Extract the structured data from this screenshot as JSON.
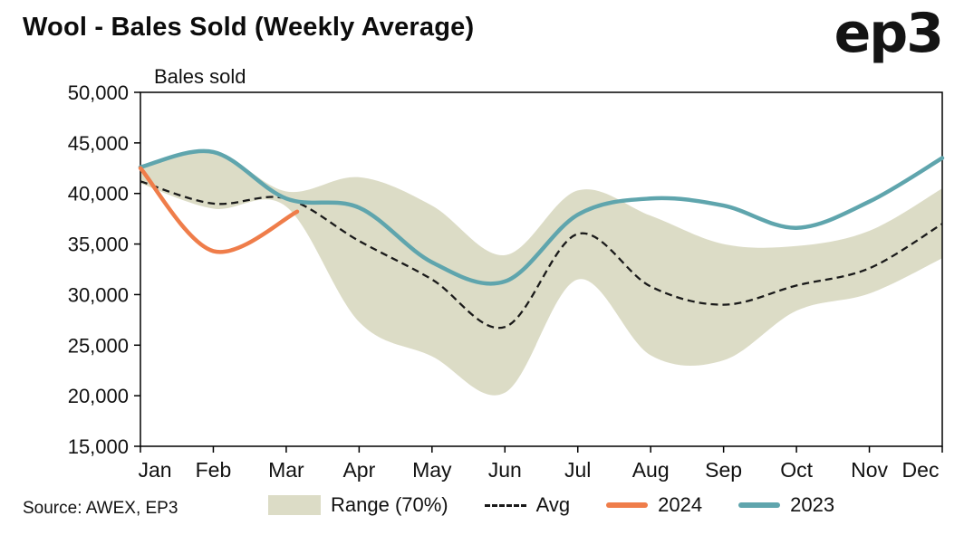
{
  "header": {
    "logo": "ep3"
  },
  "footer": {
    "source": "Source: AWEX, EP3"
  },
  "chart_data": {
    "type": "line",
    "title": "Wool - Bales Sold (Weekly Average)",
    "ylabel": "Bales sold",
    "xlabel": "",
    "categories": [
      "Jan",
      "Feb",
      "Mar",
      "Apr",
      "May",
      "Jun",
      "Jul",
      "Aug",
      "Sep",
      "Oct",
      "Nov",
      "Dec"
    ],
    "ylim": [
      15000,
      50000
    ],
    "yticks": [
      15000,
      20000,
      25000,
      30000,
      35000,
      40000,
      45000,
      50000
    ],
    "grid": false,
    "legend_position": "bottom",
    "series": [
      {
        "name": "Range (70%)",
        "type": "band",
        "color": "#dcdcc6",
        "upper": [
          42600,
          44200,
          40200,
          41600,
          38800,
          33900,
          40300,
          37800,
          35000,
          34800,
          36300,
          40500
        ],
        "lower": [
          41000,
          38500,
          38700,
          27300,
          23900,
          20300,
          31500,
          24000,
          23500,
          28400,
          30100,
          33600
        ]
      },
      {
        "name": "Avg",
        "type": "dashed-line",
        "color": "#1a1a1a",
        "values": [
          41200,
          39000,
          39500,
          35300,
          31500,
          26800,
          36000,
          30800,
          29000,
          30900,
          32600,
          37000
        ]
      },
      {
        "name": "2024",
        "type": "line",
        "color": "#ef7d4a",
        "x": [
          0,
          1,
          2.15
        ],
        "values": [
          42500,
          34300,
          38200
        ]
      },
      {
        "name": "2023",
        "type": "line",
        "color": "#5fa5ad",
        "values": [
          42600,
          44100,
          39500,
          38600,
          33200,
          31300,
          37900,
          39500,
          38800,
          36600,
          39200,
          43500
        ]
      }
    ]
  }
}
